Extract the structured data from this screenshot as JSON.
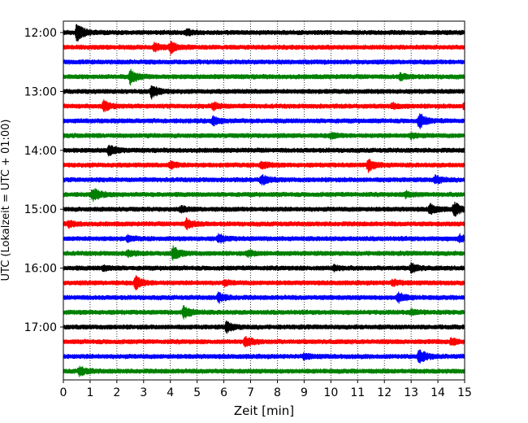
{
  "chart_data": {
    "type": "line",
    "title": "",
    "xlabel": "Zeit  [min]",
    "ylabel": "UTC (Lokalzeit = UTC + 01:00)",
    "xlim": [
      0,
      15
    ],
    "x_ticks": [
      "0",
      "1",
      "2",
      "3",
      "4",
      "5",
      "6",
      "7",
      "8",
      "9",
      "10",
      "11",
      "12",
      "13",
      "14",
      "15"
    ],
    "y_tick_labels": [
      "12:00",
      "13:00",
      "14:00",
      "15:00",
      "16:00",
      "17:00"
    ],
    "grid": "vertical dotted lines at each minute",
    "trace_interval_min": 15,
    "trace_colors": [
      "#000000",
      "#ff0000",
      "#0000ff",
      "#008000"
    ],
    "series": [
      {
        "name": "12:00",
        "color": "#000000",
        "events": [
          {
            "t": 0.5,
            "amp": 1.6
          },
          {
            "t": 4.6,
            "amp": 0.5
          }
        ]
      },
      {
        "name": "12:15",
        "color": "#ff0000",
        "events": [
          {
            "t": 3.4,
            "amp": 0.6
          },
          {
            "t": 4.0,
            "amp": 1.0
          }
        ]
      },
      {
        "name": "12:30",
        "color": "#0000ff",
        "events": []
      },
      {
        "name": "12:45",
        "color": "#008000",
        "events": [
          {
            "t": 2.5,
            "amp": 1.3
          },
          {
            "t": 12.6,
            "amp": 0.5
          }
        ]
      },
      {
        "name": "13:00",
        "color": "#000000",
        "events": [
          {
            "t": 3.3,
            "amp": 1.1
          }
        ]
      },
      {
        "name": "13:15",
        "color": "#ff0000",
        "events": [
          {
            "t": 1.5,
            "amp": 0.9
          },
          {
            "t": 5.6,
            "amp": 0.6
          },
          {
            "t": 12.3,
            "amp": 0.4
          },
          {
            "t": 15.0,
            "amp": 0.7
          }
        ]
      },
      {
        "name": "13:30",
        "color": "#0000ff",
        "events": [
          {
            "t": 5.6,
            "amp": 0.7
          },
          {
            "t": 13.3,
            "amp": 1.3
          }
        ]
      },
      {
        "name": "13:45",
        "color": "#008000",
        "events": [
          {
            "t": 10.0,
            "amp": 0.4
          },
          {
            "t": 13.0,
            "amp": 0.4
          }
        ]
      },
      {
        "name": "14:00",
        "color": "#000000",
        "events": [
          {
            "t": 1.7,
            "amp": 0.9
          }
        ]
      },
      {
        "name": "14:15",
        "color": "#ff0000",
        "events": [
          {
            "t": 4.0,
            "amp": 0.6
          },
          {
            "t": 7.4,
            "amp": 0.6
          },
          {
            "t": 11.4,
            "amp": 1.1
          }
        ]
      },
      {
        "name": "14:30",
        "color": "#0000ff",
        "events": [
          {
            "t": 7.4,
            "amp": 0.9
          },
          {
            "t": 13.9,
            "amp": 0.7
          }
        ]
      },
      {
        "name": "14:45",
        "color": "#008000",
        "events": [
          {
            "t": 1.1,
            "amp": 1.1
          },
          {
            "t": 12.8,
            "amp": 0.5
          }
        ]
      },
      {
        "name": "15:00",
        "color": "#000000",
        "events": [
          {
            "t": 4.4,
            "amp": 0.4
          },
          {
            "t": 13.7,
            "amp": 0.9
          },
          {
            "t": 14.6,
            "amp": 1.2
          }
        ]
      },
      {
        "name": "15:15",
        "color": "#ff0000",
        "events": [
          {
            "t": 0.2,
            "amp": 0.5
          },
          {
            "t": 4.6,
            "amp": 0.9
          }
        ]
      },
      {
        "name": "15:30",
        "color": "#0000ff",
        "events": [
          {
            "t": 2.4,
            "amp": 0.4
          },
          {
            "t": 5.8,
            "amp": 0.7
          },
          {
            "t": 14.8,
            "amp": 0.6
          }
        ]
      },
      {
        "name": "15:45",
        "color": "#008000",
        "events": [
          {
            "t": 2.4,
            "amp": 0.5
          },
          {
            "t": 4.1,
            "amp": 1.2
          },
          {
            "t": 6.9,
            "amp": 0.5
          }
        ]
      },
      {
        "name": "16:00",
        "color": "#000000",
        "events": [
          {
            "t": 1.5,
            "amp": 0.4
          },
          {
            "t": 10.1,
            "amp": 0.4
          },
          {
            "t": 13.0,
            "amp": 0.8
          }
        ]
      },
      {
        "name": "16:15",
        "color": "#ff0000",
        "events": [
          {
            "t": 2.7,
            "amp": 1.2
          },
          {
            "t": 6.0,
            "amp": 0.4
          },
          {
            "t": 12.3,
            "amp": 0.5
          }
        ]
      },
      {
        "name": "16:30",
        "color": "#0000ff",
        "events": [
          {
            "t": 5.8,
            "amp": 0.8
          },
          {
            "t": 12.5,
            "amp": 0.9
          }
        ]
      },
      {
        "name": "16:45",
        "color": "#008000",
        "events": [
          {
            "t": 4.5,
            "amp": 1.1
          },
          {
            "t": 13.0,
            "amp": 0.4
          }
        ]
      },
      {
        "name": "17:00",
        "color": "#000000",
        "events": [
          {
            "t": 6.1,
            "amp": 0.9
          }
        ]
      },
      {
        "name": "17:15",
        "color": "#ff0000",
        "events": [
          {
            "t": 6.8,
            "amp": 0.9
          },
          {
            "t": 14.5,
            "amp": 0.6
          }
        ]
      },
      {
        "name": "17:30",
        "color": "#0000ff",
        "events": [
          {
            "t": 9.0,
            "amp": 0.4
          },
          {
            "t": 13.3,
            "amp": 1.3
          }
        ]
      },
      {
        "name": "17:45",
        "color": "#008000",
        "events": [
          {
            "t": 0.6,
            "amp": 0.8
          }
        ]
      }
    ]
  }
}
